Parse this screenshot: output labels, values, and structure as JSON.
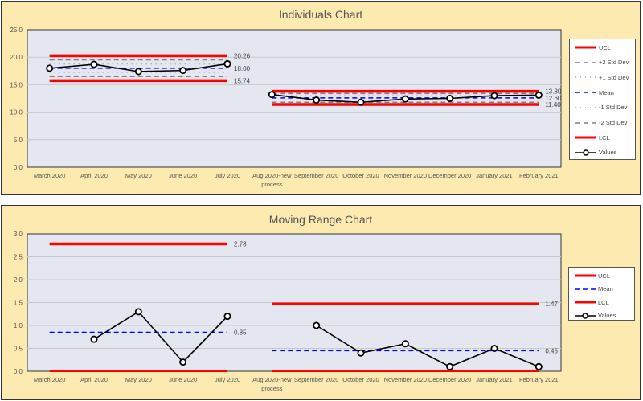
{
  "chart_data": [
    {
      "type": "line",
      "title": "Individuals Chart",
      "categories": [
        "March 2020",
        "April 2020",
        "May 2020",
        "June 2020",
        "July 2020",
        "Aug 2020-new process",
        "September 2020",
        "October 2020",
        "November 2020",
        "December 2020",
        "January 2021",
        "February 2021"
      ],
      "ylim": [
        0,
        25
      ],
      "yticks": [
        "0.0",
        "5.0",
        "10.0",
        "15.0",
        "20.0",
        "25.0"
      ],
      "grid": true,
      "legend_position": "right",
      "segments": [
        {
          "from": 0,
          "to": 4,
          "ucl": 20.26,
          "plus2": 19.51,
          "plus1": 18.75,
          "mean": 18.0,
          "minus1": 17.25,
          "minus2": 16.49,
          "lcl": 15.74,
          "labels": [
            "20.26",
            "18.00",
            "15.74"
          ]
        },
        {
          "from": 5,
          "to": 11,
          "ucl": 13.8,
          "plus2": 13.4,
          "plus1": 13.0,
          "mean": 12.6,
          "minus1": 12.2,
          "minus2": 11.8,
          "lcl": 11.4,
          "labels": [
            "13.80",
            "12.60",
            "11.40"
          ]
        }
      ],
      "values": [
        18.0,
        18.7,
        17.4,
        17.6,
        18.8,
        13.2,
        12.2,
        11.8,
        12.4,
        12.5,
        13.0,
        13.1
      ],
      "legend": [
        "UCL",
        "+2 Std Dev",
        "+1 Std Dev",
        "Mean",
        "-1 Std Dev",
        "-2 Std Dev",
        "LCL",
        "Values"
      ]
    },
    {
      "type": "line",
      "title": "Moving Range Chart",
      "categories": [
        "March 2020",
        "April 2020",
        "May 2020",
        "June 2020",
        "July 2020",
        "Aug 2020-new process",
        "September 2020",
        "October 2020",
        "November 2020",
        "December 2020",
        "January 2021",
        "February 2021"
      ],
      "ylim": [
        0,
        3
      ],
      "yticks": [
        "0.0",
        "0.5",
        "1.0",
        "1.5",
        "2.0",
        "2.5",
        "3.0"
      ],
      "grid": true,
      "legend_position": "right",
      "segments": [
        {
          "from": 0,
          "to": 4,
          "ucl": 2.78,
          "mean": 0.85,
          "lcl": 0,
          "labels": [
            "2.78",
            "0.85"
          ]
        },
        {
          "from": 5,
          "to": 11,
          "ucl": 1.47,
          "mean": 0.45,
          "lcl": 0,
          "labels": [
            "1.47",
            "0.45"
          ]
        }
      ],
      "values": [
        null,
        0.7,
        1.3,
        0.2,
        1.2,
        null,
        1.0,
        0.4,
        0.6,
        0.1,
        0.5,
        0.1
      ],
      "legend": [
        "UCL",
        "Mean",
        "LCL",
        "Values"
      ]
    }
  ],
  "colors": {
    "limit": "#ff0000",
    "mean": "#0000ff",
    "std": "#808080",
    "values": "#000000",
    "panel": "#fdeab0",
    "plot": "#e4e7ef"
  }
}
